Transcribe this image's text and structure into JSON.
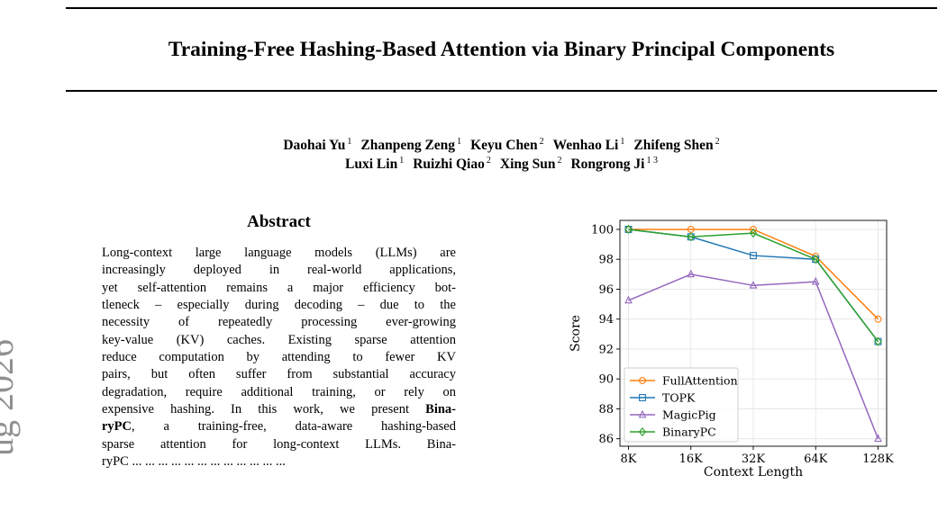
{
  "paper": {
    "title": "Training-Free Hashing-Based Attention via Binary Principal Components",
    "authors_line1": [
      {
        "name": "Daohai Yu",
        "aff": "1"
      },
      {
        "name": "Zhanpeng Zeng",
        "aff": "1"
      },
      {
        "name": "Keyu Chen",
        "aff": "2"
      },
      {
        "name": "Wenhao Li",
        "aff": "1"
      },
      {
        "name": "Zhifeng Shen",
        "aff": "2"
      }
    ],
    "authors_line2": [
      {
        "name": "Luxi Lin",
        "aff": "1"
      },
      {
        "name": "Ruizhi Qiao",
        "aff": "2"
      },
      {
        "name": "Xing Sun",
        "aff": "2"
      },
      {
        "name": "Rongrong Ji",
        "aff": "1 3"
      }
    ],
    "abstract_heading": "Abstract",
    "abstract_lines": [
      "Long-context large language models (LLMs) are",
      "increasingly deployed in real-world applications,",
      "yet self-attention remains a major efficiency bot-",
      "tleneck – especially during decoding – due to the",
      "necessity of repeatedly processing ever-growing",
      "key-value (KV) caches. Existing sparse attention",
      "reduce computation by attending to fewer KV",
      "pairs, but often suffer from substantial accuracy",
      "degradation, require additional training, or rely on",
      "expensive hashing. In this work, we present [[Bina-]]",
      "[[ryPC]], a training-free, data-aware hashing-based",
      "sparse attention for long-context LLMs. Bina-",
      "ryPC ... ... ... ... ... ... ... ... ... ... ... ..."
    ],
    "side_stamp": "ug 2026"
  },
  "chart_data": {
    "type": "line",
    "categories": [
      "8K",
      "16K",
      "32K",
      "64K",
      "128K"
    ],
    "xlabel": "Context Length",
    "ylabel": "Score",
    "ylim": [
      85.5,
      100.6
    ],
    "yticks": [
      86,
      88,
      90,
      92,
      94,
      96,
      98,
      100
    ],
    "grid": true,
    "legend_position": "lower-left",
    "series": [
      {
        "name": "FullAttention",
        "color": "#ff7f0e",
        "marker": "circle",
        "values": [
          100.0,
          100.0,
          100.0,
          98.2,
          94.0
        ]
      },
      {
        "name": "TOPK",
        "color": "#1f77b4",
        "marker": "square",
        "values": [
          100.0,
          99.5,
          98.25,
          98.0,
          92.5
        ]
      },
      {
        "name": "MagicPig",
        "color": "#9467bd",
        "marker": "triangle",
        "values": [
          95.25,
          97.0,
          96.25,
          96.5,
          86.0
        ]
      },
      {
        "name": "BinaryPC",
        "color": "#2ca02c",
        "marker": "diamond",
        "values": [
          100.0,
          99.5,
          99.75,
          98.0,
          92.5
        ]
      }
    ]
  }
}
